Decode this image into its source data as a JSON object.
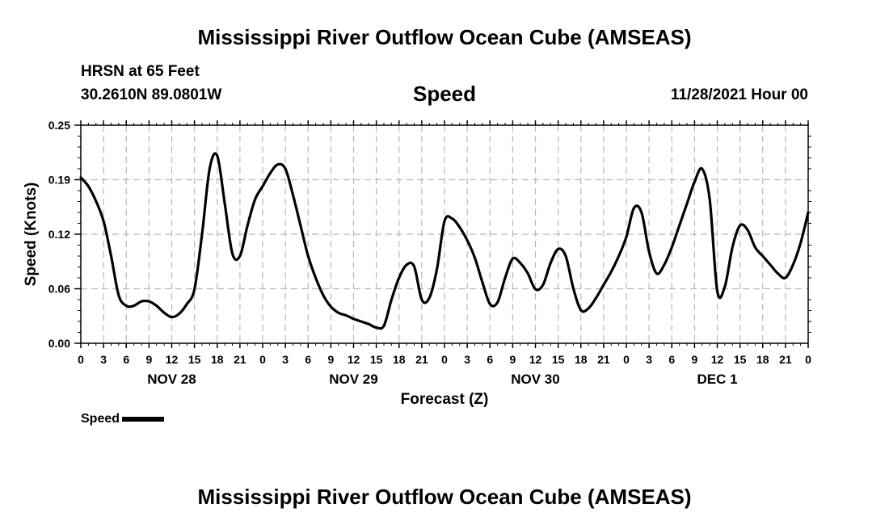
{
  "header": {
    "title": "Mississippi River Outflow Ocean Cube (AMSEAS)",
    "station": "HRSN at 65 Feet",
    "coords": "30.2610N  89.0801W",
    "parameter": "Speed",
    "datetime": "11/28/2021 Hour 00"
  },
  "footer": {
    "title": "Mississippi River Outflow Ocean Cube (AMSEAS)"
  },
  "chart_data": {
    "type": "line",
    "title": "Speed",
    "xlabel": "Forecast (Z)",
    "ylabel": "Speed (Knots)",
    "ylim": [
      0,
      0.25
    ],
    "y_ticks": [
      "0.00",
      "0.06",
      "0.12",
      "0.19",
      "0.25"
    ],
    "x_range_hours": [
      0,
      96
    ],
    "x_tick_labels": [
      "0",
      "3",
      "6",
      "9",
      "12",
      "15",
      "18",
      "21",
      "0",
      "3",
      "6",
      "9",
      "12",
      "15",
      "18",
      "21",
      "0",
      "3",
      "6",
      "9",
      "12",
      "15",
      "18",
      "21",
      "0",
      "3",
      "6",
      "9",
      "12",
      "15",
      "18",
      "21",
      "0"
    ],
    "day_labels": [
      "NOV 28",
      "NOV 29",
      "NOV 30",
      "DEC 1"
    ],
    "grid": true,
    "line_color": "#000000",
    "series": [
      {
        "name": "Speed",
        "x": [
          0,
          1,
          2,
          3,
          4,
          5,
          6,
          7,
          8,
          9,
          10,
          11,
          12,
          13,
          14,
          15,
          16,
          17,
          18,
          19,
          20,
          21,
          22,
          23,
          24,
          25,
          26,
          27,
          28,
          29,
          30,
          31,
          32,
          33,
          34,
          35,
          36,
          37,
          38,
          39,
          40,
          41,
          42,
          43,
          44,
          45,
          46,
          47,
          48,
          49,
          50,
          51,
          52,
          53,
          54,
          55,
          56,
          57,
          58,
          59,
          60,
          61,
          62,
          63,
          64,
          65,
          66,
          67,
          68,
          69,
          70,
          71,
          72,
          73,
          74,
          75,
          76,
          77,
          78,
          79,
          80,
          81,
          82,
          83,
          84,
          85,
          86,
          87,
          88,
          89,
          90,
          91,
          92,
          93,
          94,
          95,
          96
        ],
        "values": [
          0.19,
          0.18,
          0.163,
          0.14,
          0.1,
          0.055,
          0.043,
          0.043,
          0.048,
          0.048,
          0.043,
          0.035,
          0.03,
          0.034,
          0.045,
          0.062,
          0.125,
          0.2,
          0.215,
          0.16,
          0.103,
          0.1,
          0.135,
          0.165,
          0.18,
          0.195,
          0.205,
          0.2,
          0.17,
          0.135,
          0.1,
          0.075,
          0.055,
          0.042,
          0.035,
          0.032,
          0.028,
          0.025,
          0.022,
          0.018,
          0.02,
          0.05,
          0.075,
          0.09,
          0.088,
          0.05,
          0.052,
          0.085,
          0.14,
          0.143,
          0.133,
          0.118,
          0.098,
          0.07,
          0.045,
          0.047,
          0.075,
          0.097,
          0.092,
          0.08,
          0.062,
          0.067,
          0.092,
          0.108,
          0.1,
          0.063,
          0.038,
          0.04,
          0.052,
          0.067,
          0.082,
          0.1,
          0.122,
          0.155,
          0.15,
          0.105,
          0.08,
          0.09,
          0.11,
          0.135,
          0.16,
          0.185,
          0.2,
          0.165,
          0.06,
          0.065,
          0.11,
          0.135,
          0.13,
          0.11,
          0.1,
          0.09,
          0.08,
          0.075,
          0.09,
          0.115,
          0.15
        ]
      }
    ],
    "legend": {
      "position": "bottom-left",
      "label": "Speed"
    }
  }
}
